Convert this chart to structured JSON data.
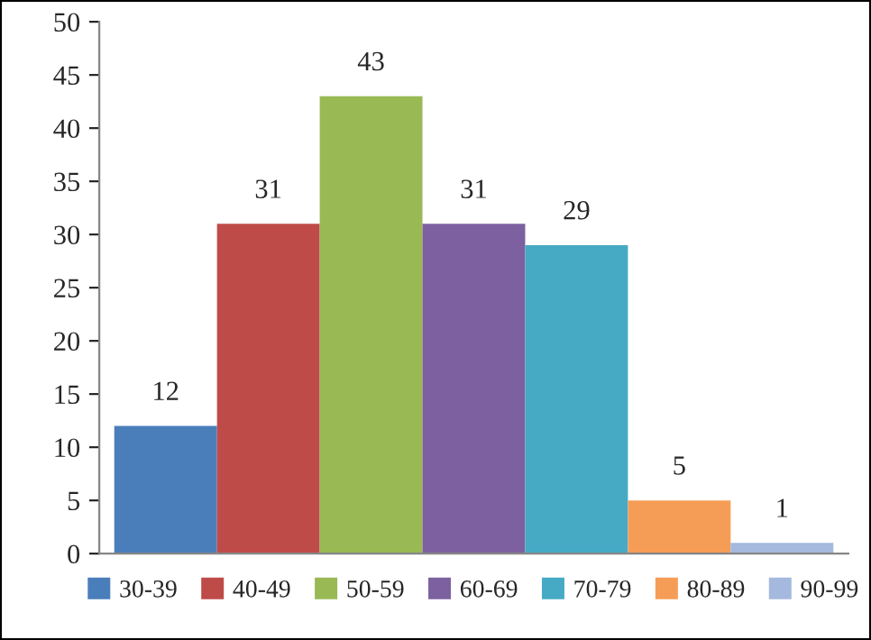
{
  "chart_data": {
    "type": "bar",
    "categories": [
      null
    ],
    "series": [
      {
        "name": "30-39",
        "color": "#4a7ebb",
        "values": [
          12
        ]
      },
      {
        "name": "40-49",
        "color": "#be4b48",
        "values": [
          31
        ]
      },
      {
        "name": "50-59",
        "color": "#98b954",
        "values": [
          43
        ]
      },
      {
        "name": "60-69",
        "color": "#7d60a0",
        "values": [
          31
        ]
      },
      {
        "name": "70-79",
        "color": "#46aac5",
        "values": [
          29
        ]
      },
      {
        "name": "80-89",
        "color": "#f59d56",
        "values": [
          5
        ]
      },
      {
        "name": "90-99",
        "color": "#a5b9de",
        "values": [
          1
        ]
      }
    ],
    "ylim": [
      0,
      50
    ],
    "yticks": [
      0,
      5,
      10,
      15,
      20,
      25,
      30,
      35,
      40,
      45,
      50
    ],
    "data_labels": true,
    "legend": "bottom",
    "grid": false
  }
}
